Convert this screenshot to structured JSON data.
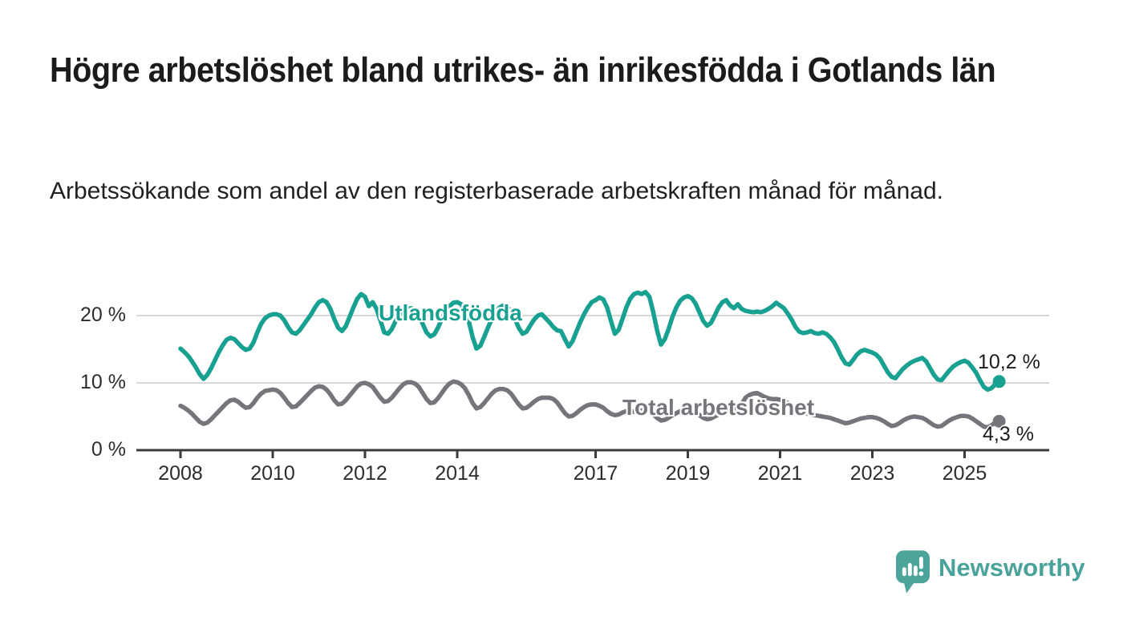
{
  "header": {
    "title": "Högre arbetslöshet bland utrikes- än inrikesfödda i Gotlands län",
    "subtitle": "Arbetssökande som andel av den registerbaserade arbetskraften månad för månad."
  },
  "chart_data": {
    "type": "line",
    "title": "Högre arbetslöshet bland utrikes- än inrikesfödda i Gotlands län",
    "subtitle": "Arbetssökande som andel av den registerbaserade arbetskraften månad för månad.",
    "unit": "%",
    "x_start_year": 2008,
    "x_step_months": 1,
    "x_end": "2025-10",
    "ylim": [
      0,
      25
    ],
    "grid": "horizontal",
    "legend_position": "inline-labels",
    "x_ticks": [
      {
        "label": "2008",
        "year": 2008
      },
      {
        "label": "2010",
        "year": 2010
      },
      {
        "label": "2012",
        "year": 2012
      },
      {
        "label": "2014",
        "year": 2014
      },
      {
        "label": "2017",
        "year": 2017
      },
      {
        "label": "2019",
        "year": 2019
      },
      {
        "label": "2021",
        "year": 2021
      },
      {
        "label": "2023",
        "year": 2023
      },
      {
        "label": "2025",
        "year": 2025
      }
    ],
    "y_ticks": [
      {
        "label": "20 %",
        "value": 20
      },
      {
        "label": "10 %",
        "value": 10
      },
      {
        "label": "0 %",
        "value": 0
      }
    ],
    "series": [
      {
        "name": "Utlandsfödda",
        "color": "#18a091",
        "end_label": "10,2 %",
        "end_value": 10.2,
        "values": [
          15.1,
          14.6,
          14.0,
          13.2,
          12.3,
          11.3,
          10.6,
          11.2,
          12.2,
          13.4,
          14.6,
          15.6,
          16.4,
          16.7,
          16.5,
          15.9,
          15.3,
          14.9,
          15.1,
          16.0,
          17.5,
          18.8,
          19.6,
          20.0,
          20.2,
          20.2,
          20.0,
          19.3,
          18.3,
          17.5,
          17.3,
          17.8,
          18.6,
          19.4,
          20.2,
          21.2,
          22.0,
          22.3,
          22.0,
          21.0,
          19.5,
          18.2,
          17.7,
          18.4,
          19.8,
          21.2,
          22.5,
          23.2,
          22.8,
          21.4,
          22.0,
          21.0,
          19.3,
          17.5,
          17.3,
          18.0,
          19.2,
          20.2,
          20.8,
          21.0,
          21.1,
          20.8,
          20.0,
          18.8,
          17.5,
          16.9,
          17.2,
          18.2,
          19.5,
          20.6,
          21.4,
          21.9,
          22.0,
          21.7,
          20.8,
          19.2,
          16.8,
          15.1,
          15.5,
          16.8,
          18.2,
          19.5,
          20.5,
          21.2,
          21.5,
          21.3,
          20.6,
          19.5,
          18.2,
          17.3,
          17.6,
          18.5,
          19.4,
          20.0,
          20.2,
          19.6,
          19.0,
          18.3,
          17.8,
          17.7,
          16.5,
          15.4,
          16.2,
          17.6,
          19.0,
          20.2,
          21.2,
          22.0,
          22.3,
          22.7,
          22.4,
          21.2,
          19.2,
          17.3,
          17.9,
          19.5,
          21.2,
          22.5,
          23.2,
          23.4,
          23.2,
          23.5,
          22.8,
          20.5,
          17.8,
          15.7,
          16.5,
          18.0,
          19.8,
          21.2,
          22.2,
          22.7,
          22.9,
          22.6,
          21.8,
          20.5,
          19.2,
          18.5,
          18.9,
          20.0,
          21.2,
          22.0,
          22.3,
          21.5,
          21.1,
          21.7,
          21.0,
          20.7,
          20.6,
          20.5,
          20.6,
          20.5,
          20.7,
          21.0,
          21.4,
          21.9,
          21.5,
          21.1,
          20.3,
          19.4,
          18.3,
          17.6,
          17.4,
          17.5,
          17.7,
          17.4,
          17.3,
          17.5,
          17.3,
          16.8,
          16.1,
          15.0,
          13.8,
          12.9,
          12.7,
          13.4,
          14.2,
          14.7,
          14.9,
          14.7,
          14.5,
          14.2,
          13.6,
          12.6,
          11.6,
          10.9,
          10.7,
          11.4,
          12.1,
          12.6,
          13.0,
          13.3,
          13.5,
          13.7,
          13.2,
          12.2,
          11.2,
          10.5,
          10.4,
          11.1,
          11.8,
          12.4,
          12.8,
          13.1,
          13.3,
          13.0,
          12.3,
          11.5,
          10.4,
          9.4,
          9.0,
          9.2,
          9.8,
          10.2
        ]
      },
      {
        "name": "Total arbetslöshet",
        "color": "#76757b",
        "end_label": "4,3 %",
        "end_value": 4.3,
        "values": [
          6.6,
          6.3,
          5.9,
          5.4,
          4.8,
          4.2,
          3.9,
          4.1,
          4.6,
          5.2,
          5.8,
          6.4,
          7.0,
          7.4,
          7.5,
          7.2,
          6.7,
          6.3,
          6.4,
          7.0,
          7.8,
          8.4,
          8.8,
          8.9,
          9.0,
          8.9,
          8.5,
          7.8,
          7.0,
          6.4,
          6.5,
          7.0,
          7.6,
          8.2,
          8.8,
          9.3,
          9.5,
          9.4,
          9.0,
          8.3,
          7.4,
          6.8,
          6.9,
          7.4,
          8.1,
          8.8,
          9.5,
          9.9,
          10.0,
          9.8,
          9.4,
          8.6,
          7.8,
          7.2,
          7.3,
          7.8,
          8.5,
          9.2,
          9.8,
          10.1,
          10.1,
          9.9,
          9.4,
          8.5,
          7.6,
          7.0,
          7.1,
          7.7,
          8.5,
          9.3,
          9.9,
          10.2,
          10.1,
          9.8,
          9.2,
          8.2,
          7.0,
          6.2,
          6.4,
          7.0,
          7.7,
          8.4,
          8.9,
          9.1,
          9.1,
          8.9,
          8.4,
          7.6,
          6.8,
          6.2,
          6.3,
          6.7,
          7.2,
          7.6,
          7.8,
          7.8,
          7.8,
          7.6,
          7.1,
          6.3,
          5.5,
          5.0,
          5.1,
          5.5,
          6.0,
          6.4,
          6.7,
          6.8,
          6.8,
          6.6,
          6.3,
          5.8,
          5.4,
          5.2,
          5.3,
          5.6,
          5.8,
          5.8,
          5.7,
          5.5,
          5.9,
          6.0,
          5.8,
          5.3,
          4.8,
          4.4,
          4.5,
          4.8,
          5.2,
          5.5,
          5.8,
          6.0,
          6.1,
          6.0,
          5.7,
          5.2,
          4.8,
          4.6,
          4.7,
          5.0,
          5.3,
          5.6,
          5.8,
          6.0,
          6.1,
          6.2,
          6.8,
          7.8,
          8.2,
          8.4,
          8.5,
          8.2,
          7.9,
          7.7,
          7.6,
          7.6,
          7.5,
          7.3,
          7.0,
          6.6,
          6.1,
          5.7,
          5.5,
          5.4,
          5.3,
          5.2,
          5.1,
          5.0,
          4.9,
          4.8,
          4.6,
          4.4,
          4.2,
          4.0,
          4.1,
          4.3,
          4.5,
          4.7,
          4.8,
          4.9,
          4.9,
          4.8,
          4.6,
          4.3,
          3.9,
          3.6,
          3.7,
          4.0,
          4.4,
          4.7,
          4.9,
          5.0,
          4.9,
          4.8,
          4.5,
          4.1,
          3.7,
          3.5,
          3.6,
          4.0,
          4.4,
          4.7,
          4.9,
          5.1,
          5.1,
          5.0,
          4.7,
          4.3,
          3.9,
          3.5,
          3.4,
          3.7,
          4.1,
          4.3
        ]
      }
    ],
    "colors": {
      "grid": "#d8d8d8",
      "axis": "#3b3b3b",
      "tick_text": "#2d2d2d"
    }
  },
  "footer": {
    "brand": "Newsworthy",
    "brand_color": "#4aa39a"
  }
}
